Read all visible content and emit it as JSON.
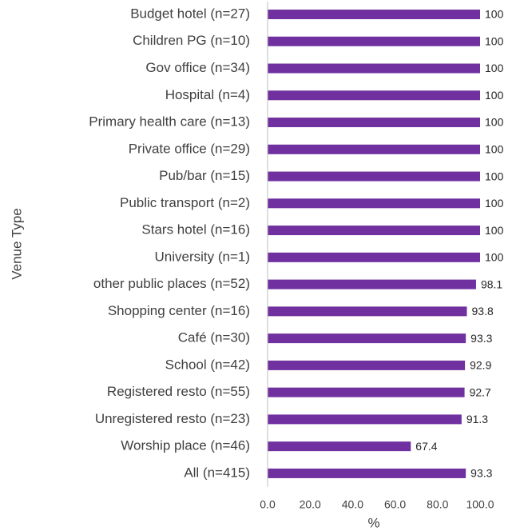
{
  "chart_data": {
    "type": "bar",
    "orientation": "horizontal",
    "xlabel": "%",
    "ylabel": "Venue Type",
    "categories": [
      "Budget hotel (n=27)",
      "Children PG (n=10)",
      "Gov office (n=34)",
      "Hospital (n=4)",
      "Primary health care (n=13)",
      "Private office (n=29)",
      "Pub/bar (n=15)",
      "Public transport (n=2)",
      "Stars hotel (n=16)",
      "University (n=1)",
      "other public places (n=52)",
      "Shopping center (n=16)",
      "Café (n=30)",
      "School (n=42)",
      "Registered resto (n=55)",
      "Unregistered resto (n=23)",
      "Worship place (n=46)",
      "All (n=415)"
    ],
    "values": [
      100,
      100,
      100,
      100,
      100,
      100,
      100,
      100,
      100,
      100,
      98.1,
      93.8,
      93.3,
      92.9,
      92.7,
      91.3,
      67.4,
      93.3
    ],
    "color": "#7030a0",
    "xlim": [
      0,
      100
    ],
    "xticks": [
      {
        "value": 0,
        "label": "0.0"
      },
      {
        "value": 20,
        "label": "20.0"
      },
      {
        "value": 40,
        "label": "40.0"
      },
      {
        "value": 60,
        "label": "60.0"
      },
      {
        "value": 80,
        "label": "80.0"
      },
      {
        "value": 100,
        "label": "100.0"
      }
    ],
    "grid": false
  }
}
